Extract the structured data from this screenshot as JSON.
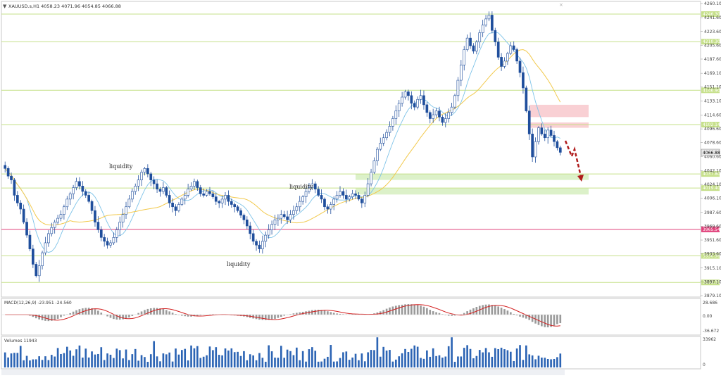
{
  "window": {
    "symbol_info": "XAUUSD.s,H1  4058.23 4071.96 4054.85 4066.88"
  },
  "price_axis": {
    "ticks": [
      "4260.10",
      "4241.60",
      "4223.60",
      "4205.60",
      "4187.60",
      "4169.10",
      "4151.10",
      "4133.10",
      "4114.60",
      "4096.60",
      "4078.60",
      "4060.60",
      "4042.10",
      "4024.10",
      "4006.10",
      "3987.60",
      "3969.60",
      "3951.60",
      "3933.60",
      "3915.10",
      "3897.10",
      "3879.10"
    ]
  },
  "levels": [
    {
      "value": 4246.3,
      "label": "4246.30",
      "color": "#c6e08a"
    },
    {
      "value": 4210.3,
      "label": "4210.30",
      "color": "#c6e08a"
    },
    {
      "value": 4146.9,
      "label": "4146.90",
      "color": "#c6e08a"
    },
    {
      "value": 4102.14,
      "label": "4102.14",
      "color": "#c6e08a"
    },
    {
      "value": 4037.8,
      "label": "4037.80",
      "color": "#c6e08a"
    },
    {
      "value": 4019.4,
      "label": "4019.40",
      "color": "#c6e08a"
    },
    {
      "value": 3965.54,
      "label": "3965.54",
      "color": "#e0407a"
    },
    {
      "value": 3930.96,
      "label": "3930.96",
      "color": "#c6e08a"
    },
    {
      "value": 3896.33,
      "label": "3896.33",
      "color": "#c6e08a"
    }
  ],
  "current_price": {
    "value": 4066.88,
    "label": "4066.88"
  },
  "annotations": [
    {
      "text": "liquidity",
      "kind": "top"
    },
    {
      "text": "liquidity",
      "kind": "top"
    },
    {
      "text": "liquidity",
      "kind": "bottom"
    }
  ],
  "zones": [
    {
      "kind": "supply",
      "from": 4112,
      "to": 4128
    },
    {
      "kind": "supply",
      "from": 4098,
      "to": 4105
    },
    {
      "kind": "demand",
      "from": 4030,
      "to": 4038
    },
    {
      "kind": "demand",
      "from": 4011,
      "to": 4019
    }
  ],
  "macd": {
    "label": "MACD(12,26,9) -23.951 -24.560",
    "ticks": [
      "28.686",
      "0.00",
      "-36.672"
    ]
  },
  "volumes": {
    "label": "Volumes 11943",
    "ticks": [
      "33962",
      "0"
    ]
  },
  "chart_data": {
    "type": "candlestick",
    "symbol": "XAUUSD.s",
    "timeframe": "H1",
    "ohlc_last": {
      "open": 4058.23,
      "high": 4071.96,
      "low": 4054.85,
      "close": 4066.88
    },
    "ylim": [
      3879.1,
      4260.1
    ],
    "close_path": [
      4045,
      4035,
      4030,
      4010,
      4000,
      3992,
      3975,
      3958,
      3940,
      3920,
      3905,
      3918,
      3935,
      3948,
      3960,
      3968,
      3975,
      3980,
      3985,
      3995,
      4005,
      4012,
      4020,
      4028,
      4022,
      4015,
      4010,
      4002,
      3990,
      3975,
      3965,
      3955,
      3950,
      3945,
      3948,
      3955,
      3965,
      3975,
      3985,
      3995,
      4005,
      4015,
      4022,
      4030,
      4040,
      4045,
      4038,
      4030,
      4025,
      4018,
      4015,
      4020,
      4010,
      4000,
      3995,
      3990,
      3998,
      4005,
      4010,
      4018,
      4022,
      4028,
      4020,
      4012,
      4010,
      4015,
      4012,
      4008,
      4002,
      4000,
      4005,
      4010,
      4002,
      3998,
      3995,
      3990,
      3984,
      3978,
      3970,
      3960,
      3950,
      3945,
      3940,
      3950,
      3958,
      3965,
      3972,
      3978,
      3980,
      3985,
      3982,
      3978,
      3985,
      3990,
      3995,
      4002,
      4008,
      4015,
      4020,
      4025,
      4018,
      4010,
      4005,
      3995,
      3992,
      3998,
      4005,
      4010,
      4015,
      4010,
      4005,
      4008,
      4012,
      4010,
      4005,
      4000,
      4010,
      4025,
      4040,
      4055,
      4070,
      4078,
      4085,
      4092,
      4100,
      4110,
      4120,
      4130,
      4138,
      4145,
      4140,
      4130,
      4125,
      4135,
      4140,
      4128,
      4118,
      4110,
      4115,
      4120,
      4112,
      4105,
      4110,
      4118,
      4125,
      4140,
      4160,
      4180,
      4200,
      4215,
      4205,
      4198,
      4210,
      4222,
      4232,
      4240,
      4245,
      4225,
      4210,
      4190,
      4178,
      4185,
      4195,
      4205,
      4200,
      4185,
      4170,
      4150,
      4120,
      4090,
      4060,
      4080,
      4098,
      4090,
      4085,
      4095,
      4088,
      4080,
      4072,
      4066
    ],
    "annotations": [
      "liquidity",
      "liquidity",
      "liquidity"
    ]
  }
}
